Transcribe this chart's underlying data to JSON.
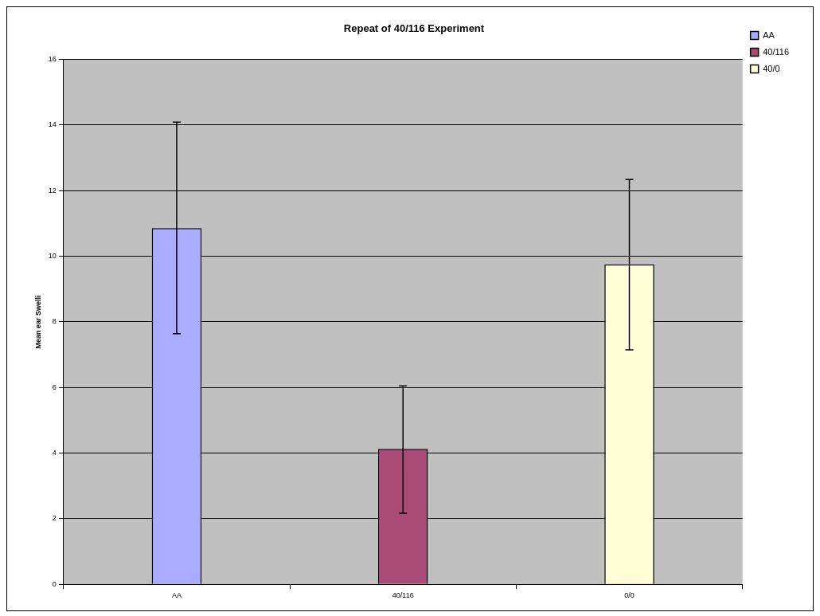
{
  "chart_data": {
    "type": "bar",
    "title": "Repeat of 40/116 Experiment",
    "ylabel": "Mean ear Swelli",
    "categories": [
      "AA",
      "40/116",
      "0/0"
    ],
    "series": [
      {
        "name": "AA",
        "color": "#aaaaff",
        "values": [
          10.86,
          null,
          null
        ],
        "errors": [
          [
            7.64,
            14.09
          ],
          null,
          null
        ]
      },
      {
        "name": "40/116",
        "color": "#aa4a77",
        "values": [
          null,
          4.13,
          null
        ],
        "errors": [
          null,
          [
            2.17,
            6.05
          ],
          null
        ]
      },
      {
        "name": "40/0",
        "color": "#ffffd7",
        "values": [
          null,
          null,
          9.75
        ],
        "errors": [
          null,
          null,
          [
            7.15,
            12.34
          ]
        ]
      }
    ],
    "ylim": [
      0,
      16
    ],
    "yticks": [
      0,
      2,
      4,
      6,
      8,
      10,
      12,
      14,
      16
    ],
    "grid": "y",
    "legend": "right"
  }
}
